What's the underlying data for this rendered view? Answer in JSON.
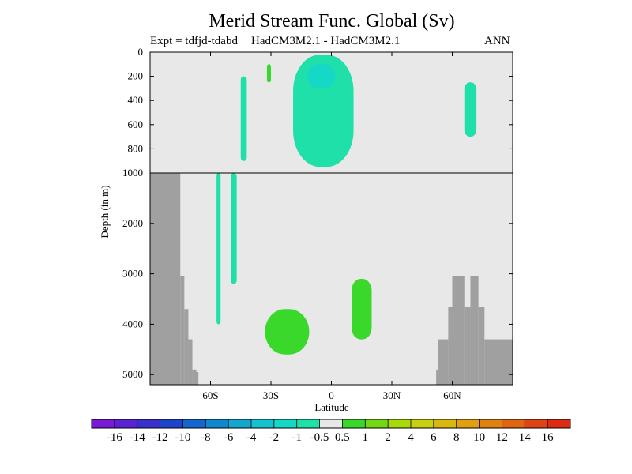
{
  "chart_data": {
    "type": "heatmap",
    "title": "Merid Stream Func. Global (Sv)",
    "experiment_label": "Expt = tdfjd-tdabd",
    "comparison_label": "HadCM3M2.1 - HadCM3M2.1",
    "season_label": "ANN",
    "xlabel": "Latitude",
    "ylabel": "Depth (in m)",
    "xlim": [
      -90,
      90
    ],
    "ylim_top_panel": [
      0,
      1000
    ],
    "ylim_bottom_panel": [
      1000,
      5200
    ],
    "x_ticks": [
      {
        "value": -60,
        "label": "60S"
      },
      {
        "value": -30,
        "label": "30S"
      },
      {
        "value": 0,
        "label": "0"
      },
      {
        "value": 30,
        "label": "30N"
      },
      {
        "value": 60,
        "label": "60N"
      }
    ],
    "y_ticks_top": [
      {
        "value": 0,
        "label": "0"
      },
      {
        "value": 200,
        "label": "200"
      },
      {
        "value": 400,
        "label": "400"
      },
      {
        "value": 600,
        "label": "600"
      },
      {
        "value": 800,
        "label": "800"
      },
      {
        "value": 1000,
        "label": "1000"
      }
    ],
    "y_ticks_bottom": [
      {
        "value": 2000,
        "label": "2000"
      },
      {
        "value": 3000,
        "label": "3000"
      },
      {
        "value": 4000,
        "label": "4000"
      },
      {
        "value": 5000,
        "label": "5000"
      }
    ],
    "colorbar": {
      "labels": [
        "-16",
        "-14",
        "-12",
        "-10",
        "-8",
        "-6",
        "-4",
        "-2",
        "-1",
        "-0.5",
        "0.5",
        "1",
        "2",
        "4",
        "6",
        "8",
        "10",
        "12",
        "14",
        "16"
      ],
      "colors": [
        "#7a1ad6",
        "#5a22d2",
        "#3a30cc",
        "#1f44cc",
        "#1565d0",
        "#1088d0",
        "#13a6cf",
        "#14c2d0",
        "#16d8c6",
        "#1ee0a8",
        "#e8e8e8",
        "#3ad82a",
        "#74d814",
        "#a9d80c",
        "#c8d010",
        "#d8b810",
        "#e0a010",
        "#e08210",
        "#e06412",
        "#e04414",
        "#dc2a14"
      ]
    },
    "land_mask": {
      "color": "#a0a0a0",
      "columns": [
        {
          "lat": [
            -90,
            -75
          ],
          "top_depth": 1000
        },
        {
          "lat": [
            -75,
            -73
          ],
          "top_depth": 3050
        },
        {
          "lat": [
            -73,
            -71
          ],
          "top_depth": 3700
        },
        {
          "lat": [
            -71,
            -69
          ],
          "top_depth": 4300
        },
        {
          "lat": [
            -69,
            -67
          ],
          "top_depth": 4900
        },
        {
          "lat": [
            -68,
            -66
          ],
          "top_depth": 4950
        },
        {
          "lat": [
            52,
            53
          ],
          "top_depth": 4900
        },
        {
          "lat": [
            53,
            58
          ],
          "top_depth": 4300
        },
        {
          "lat": [
            58,
            60
          ],
          "top_depth": 3650
        },
        {
          "lat": [
            60,
            66
          ],
          "top_depth": 3050
        },
        {
          "lat": [
            66,
            69
          ],
          "top_depth": 3650
        },
        {
          "lat": [
            69,
            73
          ],
          "top_depth": 3050
        },
        {
          "lat": [
            73,
            76
          ],
          "top_depth": 3650
        },
        {
          "lat": [
            76,
            90
          ],
          "top_depth": 4300
        }
      ]
    },
    "contour_regions": [
      {
        "level": "-0.5 to -1",
        "color": "#1ee0a8",
        "lat": [
          -45,
          -42
        ],
        "depth": [
          200,
          900
        ]
      },
      {
        "level": "-0.5 to -1",
        "color": "#1ee0a8",
        "lat": [
          -19,
          11
        ],
        "depth": [
          20,
          950
        ]
      },
      {
        "level": "-1 to -2",
        "color": "#16d8c6",
        "lat": [
          -12,
          2
        ],
        "depth": [
          100,
          300
        ]
      },
      {
        "level": "-0.5 to -1",
        "color": "#1ee0a8",
        "lat": [
          66,
          72
        ],
        "depth": [
          250,
          700
        ]
      },
      {
        "level": "-0.5 to -1",
        "color": "#1ee0a8",
        "lat": [
          -57,
          -55
        ],
        "depth": [
          1000,
          4000
        ]
      },
      {
        "level": "-0.5 to -1",
        "color": "#1ee0a8",
        "lat": [
          -50,
          -47
        ],
        "depth": [
          1000,
          3200
        ]
      },
      {
        "level": "0.5 to 1",
        "color": "#3ad82a",
        "lat": [
          -33,
          -11
        ],
        "depth": [
          3700,
          4600
        ]
      },
      {
        "level": "0.5 to 1",
        "color": "#3ad82a",
        "lat": [
          10,
          20
        ],
        "depth": [
          3100,
          4300
        ]
      },
      {
        "level": "0.5 to 1",
        "color": "#3ad82a",
        "lat": [
          -32,
          -30
        ],
        "depth": [
          100,
          250
        ]
      }
    ]
  }
}
